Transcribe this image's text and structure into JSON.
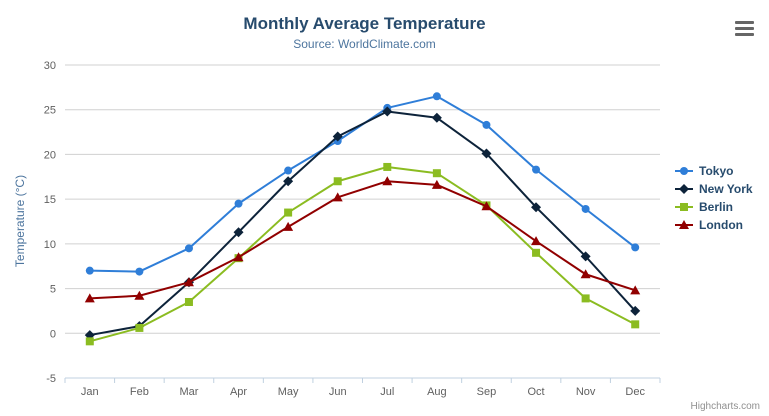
{
  "credits": "Highcharts.com",
  "chart_data": {
    "type": "line",
    "title": "Monthly Average Temperature",
    "subtitle": "Source: WorldClimate.com",
    "ylabel": "Temperature (°C)",
    "xlabel": "",
    "categories": [
      "Jan",
      "Feb",
      "Mar",
      "Apr",
      "May",
      "Jun",
      "Jul",
      "Aug",
      "Sep",
      "Oct",
      "Nov",
      "Dec"
    ],
    "series": [
      {
        "name": "Tokyo",
        "color": "#2f7ed8",
        "marker": "circle",
        "values": [
          7.0,
          6.9,
          9.5,
          14.5,
          18.2,
          21.5,
          25.2,
          26.5,
          23.3,
          18.3,
          13.9,
          9.6
        ]
      },
      {
        "name": "New York",
        "color": "#0d233a",
        "marker": "diamond",
        "values": [
          -0.2,
          0.8,
          5.7,
          11.3,
          17.0,
          22.0,
          24.8,
          24.1,
          20.1,
          14.1,
          8.6,
          2.5
        ]
      },
      {
        "name": "Berlin",
        "color": "#8bbc21",
        "marker": "square",
        "values": [
          -0.9,
          0.6,
          3.5,
          8.4,
          13.5,
          17.0,
          18.6,
          17.9,
          14.3,
          9.0,
          3.9,
          1.0
        ]
      },
      {
        "name": "London",
        "color": "#910000",
        "marker": "triangle",
        "values": [
          3.9,
          4.2,
          5.7,
          8.5,
          11.9,
          15.2,
          17.0,
          16.6,
          14.2,
          10.3,
          6.6,
          4.8
        ]
      }
    ],
    "ylim": [
      -5,
      30
    ],
    "y_ticks": [
      -5,
      0,
      5,
      10,
      15,
      20,
      25,
      30
    ],
    "grid": true,
    "legend_position": "right"
  }
}
